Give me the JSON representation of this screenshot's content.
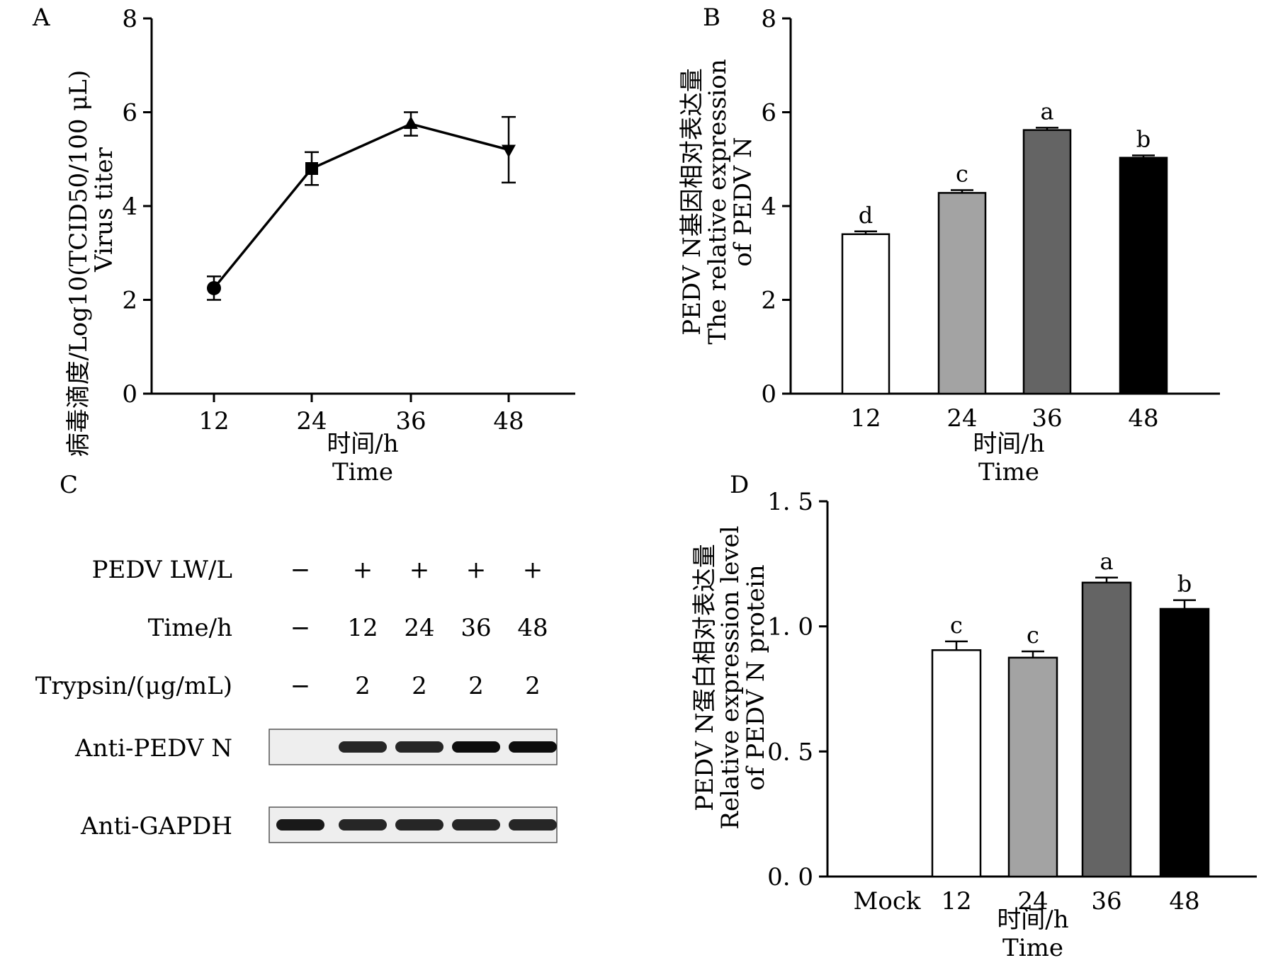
{
  "panel_letters": [
    "A",
    "B",
    "C",
    "D"
  ],
  "chart_data": [
    {
      "panel": "A",
      "type": "line",
      "categories": [
        "12",
        "24",
        "36",
        "48"
      ],
      "series": [
        {
          "values": [
            2.25,
            4.8,
            5.75,
            5.2
          ],
          "errors": [
            0.25,
            0.35,
            0.25,
            0.7
          ]
        }
      ],
      "markers": [
        "circle",
        "square",
        "triangle-up",
        "triangle-down"
      ],
      "ylim": [
        0,
        8
      ],
      "yticks": [
        "0",
        "2",
        "4",
        "6",
        "8"
      ],
      "ylabel_line1": "病毒滴度/Log10(TCID50/100 μL)",
      "ylabel_line2": "Virus titer",
      "xlabel_line1": "时间/h",
      "xlabel_line2": "Time"
    },
    {
      "panel": "B",
      "type": "bar",
      "categories": [
        "12",
        "24",
        "36",
        "48"
      ],
      "values": [
        3.4,
        4.28,
        5.62,
        5.03
      ],
      "errors": [
        0.06,
        0.06,
        0.05,
        0.05
      ],
      "significance": [
        "d",
        "c",
        "a",
        "b"
      ],
      "bar_colors": [
        "#ffffff",
        "#a3a3a3",
        "#646464",
        "#000000"
      ],
      "ylim": [
        0,
        8
      ],
      "yticks": [
        "0",
        "2",
        "4",
        "6",
        "8"
      ],
      "ylabel_line1": "PEDV N基因相对表达量",
      "ylabel_line2": "The relative expression",
      "ylabel_line3": "of PEDV N",
      "xlabel_line1": "时间/h",
      "xlabel_line2": "Time"
    },
    {
      "panel": "D",
      "type": "bar",
      "categories": [
        "Mock",
        "12",
        "24",
        "36",
        "48"
      ],
      "values": [
        0,
        0.905,
        0.875,
        1.175,
        1.07
      ],
      "errors": [
        0,
        0.035,
        0.025,
        0.02,
        0.035
      ],
      "significance": [
        "",
        "c",
        "c",
        "a",
        "b"
      ],
      "bar_colors": [
        "#ffffff",
        "#ffffff",
        "#a3a3a3",
        "#646464",
        "#000000"
      ],
      "ylim": [
        0,
        1.5
      ],
      "yticks": [
        "0. 0",
        "0. 5",
        "1. 0",
        "1. 5"
      ],
      "ylabel_line1": "PEDV N蛋白相对表达量",
      "ylabel_line2": "Relative expression level",
      "ylabel_line3": "of PEDV N protein",
      "xlabel_line1": "时间/h",
      "xlabel_line2": "Time"
    }
  ],
  "western_blot": {
    "rows": [
      {
        "label": "PEDV LW/L",
        "values": [
          "−",
          "+",
          "+",
          "+",
          "+"
        ]
      },
      {
        "label": "Time/h",
        "values": [
          "−",
          "12",
          "24",
          "36",
          "48"
        ]
      },
      {
        "label": "Trypsin/(μg/mL)",
        "values": [
          "−",
          "2",
          "2",
          "2",
          "2"
        ]
      }
    ],
    "blots": [
      {
        "label": "Anti-PEDV N",
        "band_intensity": [
          0,
          0.85,
          0.85,
          0.95,
          0.95
        ]
      },
      {
        "label": "Anti-GAPDH",
        "band_intensity": [
          0.9,
          0.85,
          0.85,
          0.85,
          0.85
        ]
      }
    ]
  }
}
